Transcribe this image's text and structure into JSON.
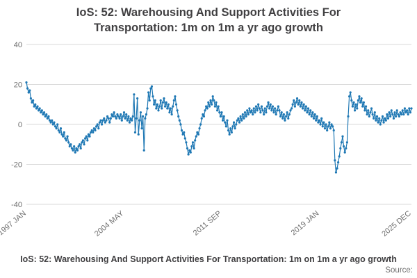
{
  "title": "IoS: 52: Warehousing And Support Activities For Transportation: 1m on 1m a yr ago growth",
  "footer": {
    "title": "IoS: 52: Warehousing And Support Activities For Transportation: 1m on 1m a yr ago growth",
    "source_label": "Source:"
  },
  "chart_data": {
    "type": "line",
    "title": "IoS: 52: Warehousing And Support Activities For Transportation: 1m on 1m a yr ago growth",
    "xlabel": "",
    "ylabel": "",
    "frequency": "monthly",
    "x_start": "1997 JAN",
    "x_end": "2025 DEC",
    "ylim": [
      -40,
      40
    ],
    "y_ticks": [
      40,
      20,
      0,
      -20,
      -40
    ],
    "x_ticks": [
      {
        "label": "1997 JAN",
        "index": 0
      },
      {
        "label": "2004 MAY",
        "index": 88
      },
      {
        "label": "2011 SEP",
        "index": 176
      },
      {
        "label": "2019 JAN",
        "index": 264
      },
      {
        "label": "2025 DEC",
        "index": 347
      }
    ],
    "line_color": "#1f78b4",
    "grid_color": "#d9d9d9",
    "tick_label_color": "#6e6e6e",
    "grid_on": true,
    "legend": "none",
    "values": [
      21,
      18,
      16,
      17,
      13,
      11,
      12,
      9,
      10,
      8,
      9,
      7,
      8,
      6,
      7,
      5,
      6,
      4,
      5,
      3,
      4,
      2,
      1,
      2,
      0,
      1,
      -1,
      -2,
      0,
      -3,
      -4,
      -2,
      -5,
      -6,
      -4,
      -7,
      -8,
      -6,
      -9,
      -11,
      -10,
      -12,
      -13,
      -11,
      -14,
      -12,
      -13,
      -11,
      -10,
      -12,
      -9,
      -8,
      -10,
      -7,
      -6,
      -8,
      -5,
      -6,
      -4,
      -3,
      -4,
      -2,
      -3,
      -1,
      0,
      -2,
      1,
      2,
      0,
      2,
      3,
      1,
      2,
      4,
      3,
      1,
      3,
      5,
      4,
      6,
      4,
      3,
      5,
      4,
      3,
      5,
      2,
      4,
      6,
      3,
      5,
      2,
      4,
      1,
      3,
      2,
      4,
      15,
      -4,
      3,
      13,
      -5,
      2,
      6,
      -2,
      4,
      -13,
      3,
      5,
      8,
      16,
      12,
      18,
      19,
      14,
      10,
      12,
      8,
      10,
      7,
      9,
      12,
      8,
      11,
      13,
      9,
      11,
      8,
      10,
      6,
      8,
      5,
      9,
      12,
      14,
      10,
      7,
      4,
      2,
      0,
      -3,
      -5,
      -4,
      -7,
      -9,
      -12,
      -15,
      -13,
      -14,
      -11,
      -9,
      -12,
      -8,
      -6,
      -4,
      -5,
      -2,
      0,
      3,
      5,
      4,
      7,
      9,
      8,
      11,
      9,
      12,
      10,
      14,
      12,
      9,
      11,
      7,
      9,
      6,
      4,
      6,
      2,
      4,
      1,
      -1,
      2,
      -3,
      -5,
      -2,
      -4,
      -1,
      1,
      -2,
      0,
      2,
      3,
      1,
      4,
      2,
      5,
      3,
      6,
      4,
      7,
      5,
      8,
      6,
      7,
      5,
      8,
      6,
      9,
      7,
      10,
      8,
      6,
      9,
      7,
      5,
      8,
      6,
      9,
      11,
      8,
      10,
      7,
      9,
      6,
      8,
      5,
      7,
      9,
      7,
      4,
      6,
      3,
      5,
      2,
      4,
      6,
      3,
      5,
      7,
      8,
      10,
      12,
      9,
      11,
      13,
      10,
      12,
      9,
      11,
      8,
      10,
      7,
      9,
      6,
      8,
      5,
      7,
      4,
      6,
      3,
      5,
      2,
      4,
      1,
      2,
      0,
      3,
      -1,
      1,
      -2,
      0,
      -3,
      -1,
      1,
      -2,
      0,
      -1,
      -3,
      -18,
      -24,
      -22,
      -19,
      -16,
      -12,
      -9,
      -6,
      -11,
      -14,
      -12,
      -9,
      4,
      14,
      16,
      12,
      9,
      11,
      7,
      10,
      8,
      12,
      14,
      11,
      13,
      9,
      11,
      7,
      9,
      5,
      7,
      4,
      6,
      8,
      5,
      3,
      6,
      2,
      4,
      1,
      3,
      0,
      2,
      4,
      1,
      3,
      2,
      5,
      3,
      6,
      4,
      7,
      5,
      3,
      6,
      4,
      7,
      5,
      4,
      6,
      5,
      7,
      5,
      8,
      6,
      7,
      5,
      8,
      6,
      8
    ]
  }
}
